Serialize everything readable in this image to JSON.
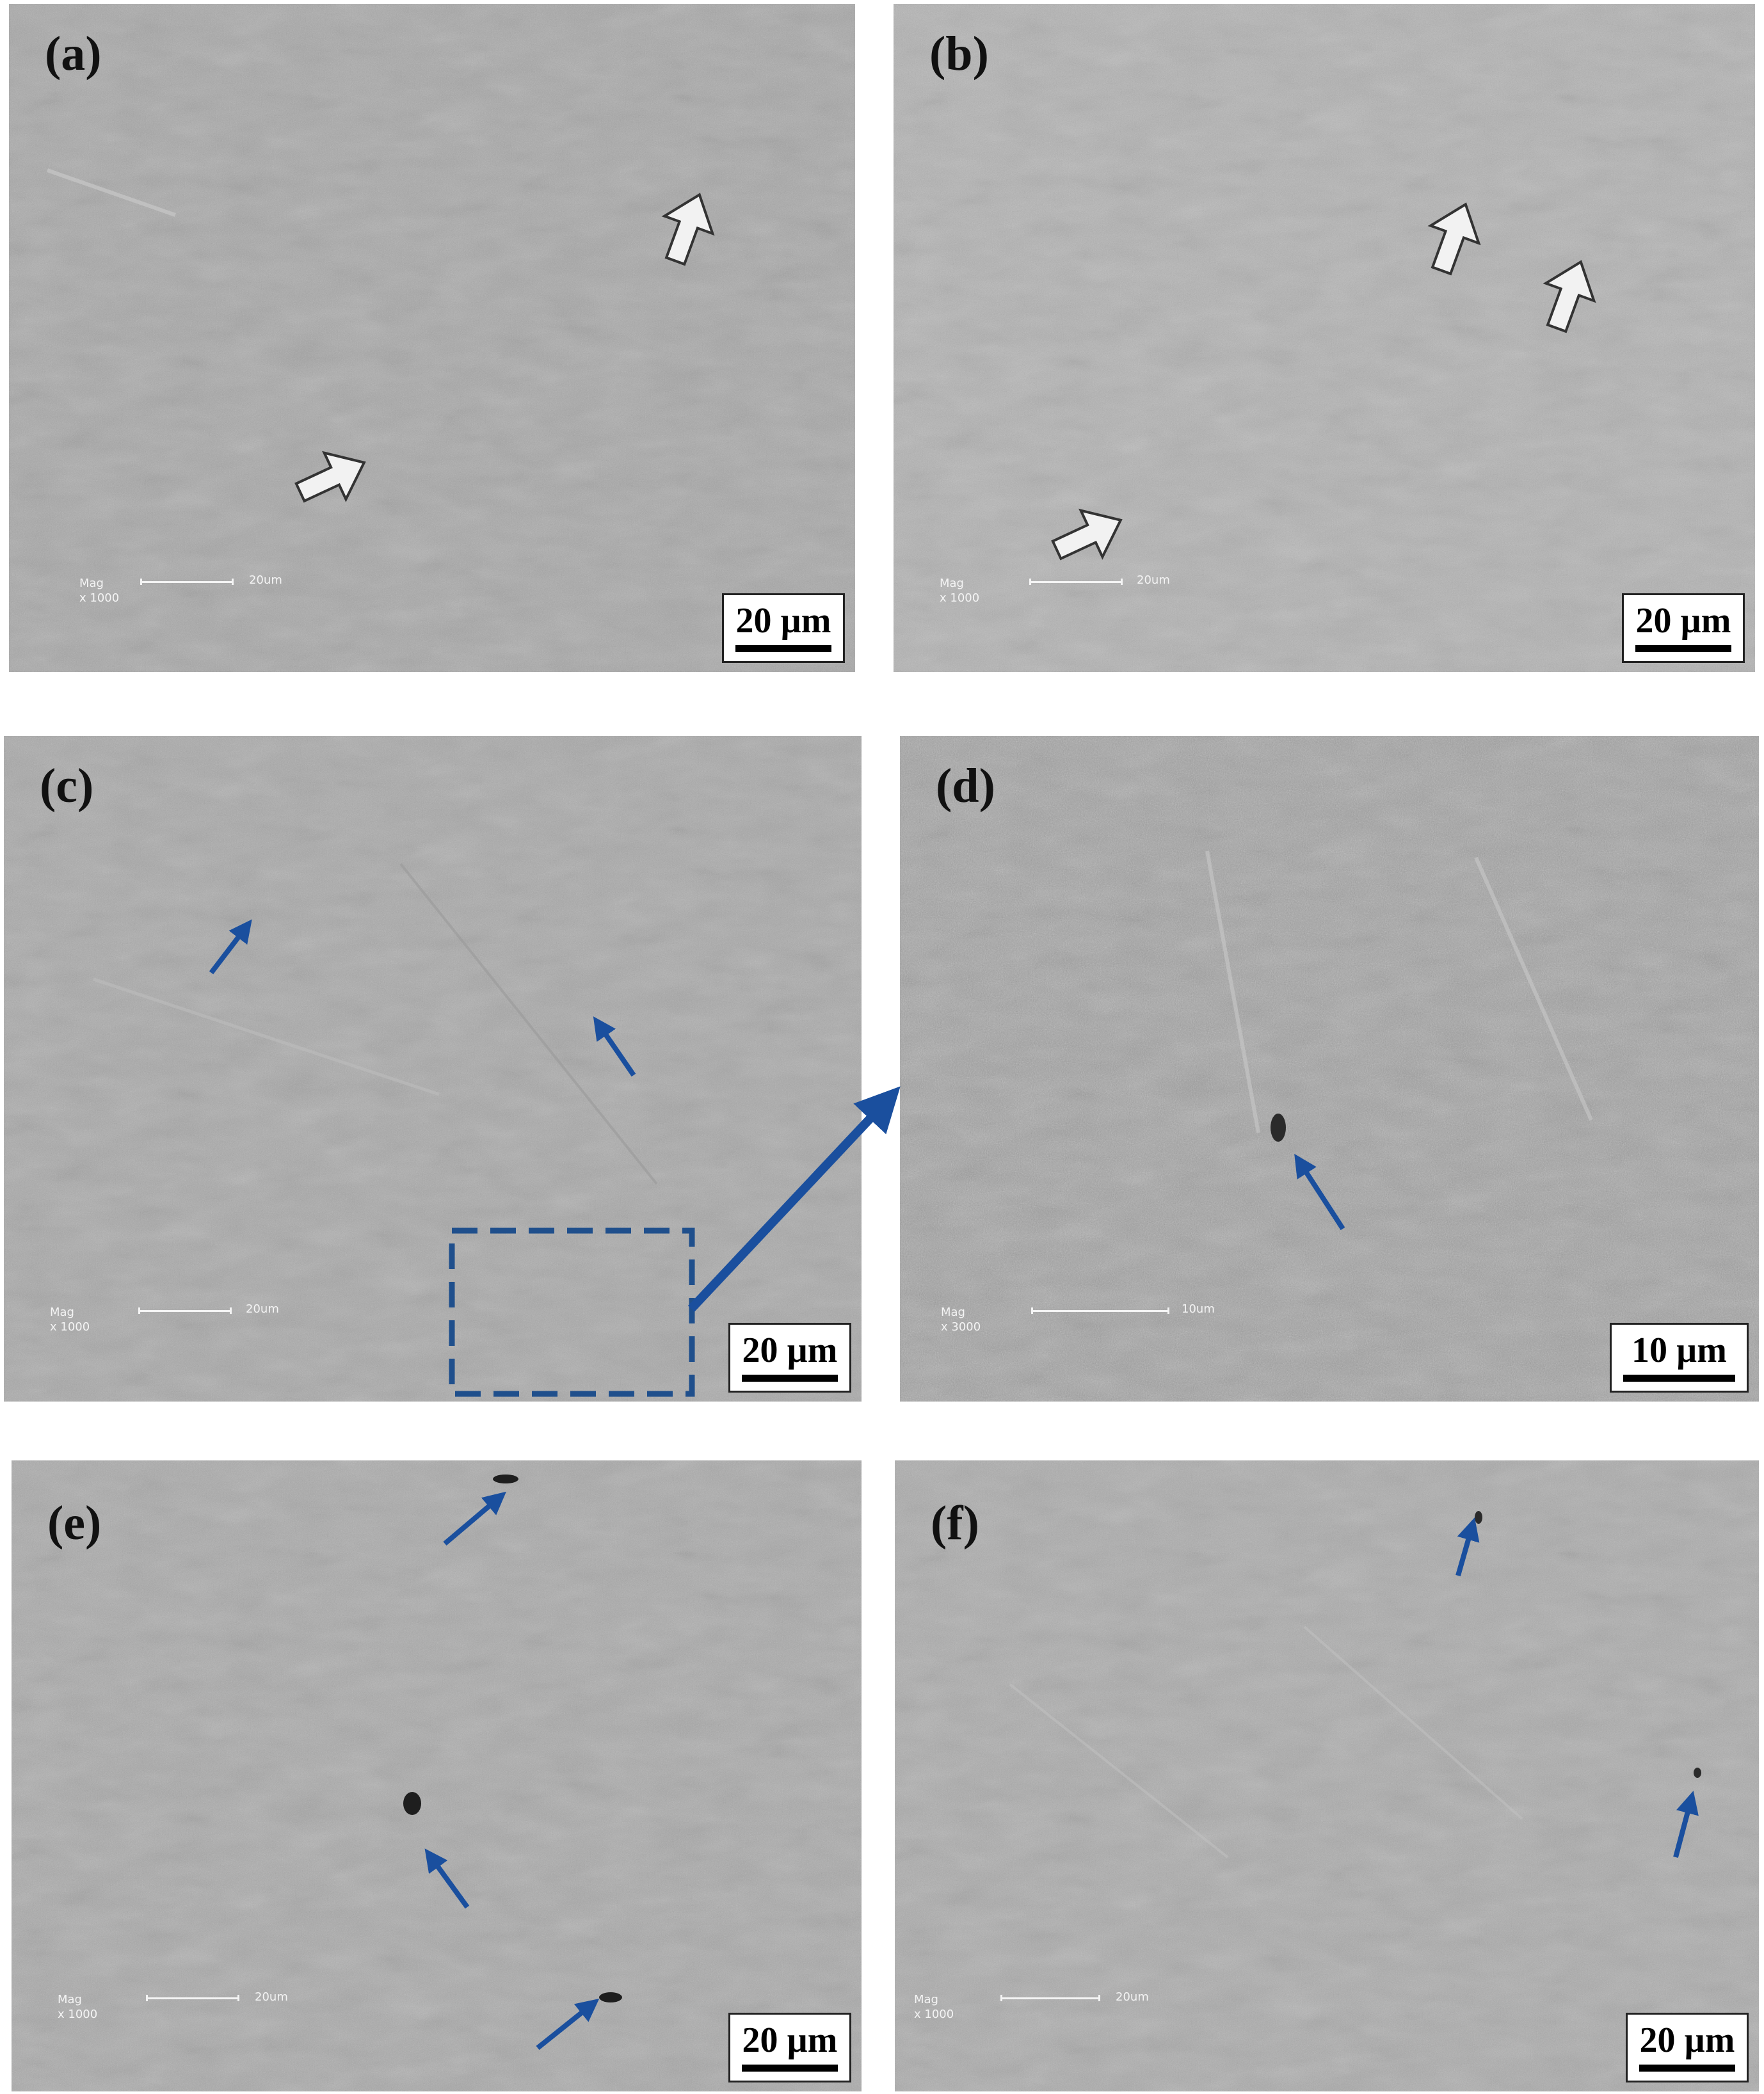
{
  "panels": {
    "a": {
      "label": "(a)",
      "mag_label": "Mag\nx 1000",
      "mag_scale_label": "20um",
      "scale_label": "20 µm"
    },
    "b": {
      "label": "(b)",
      "mag_label": "Mag\nx 1000",
      "mag_scale_label": "20um",
      "scale_label": "20 µm"
    },
    "c": {
      "label": "(c)",
      "mag_label": "Mag\nx 1000",
      "mag_scale_label": "20um",
      "scale_label": "20 µm"
    },
    "d": {
      "label": "(d)",
      "mag_label": "Mag\nx 3000",
      "mag_scale_label": "10um",
      "scale_label": "10 µm"
    },
    "e": {
      "label": "(e)",
      "mag_label": "Mag\nx 1000",
      "mag_scale_label": "20um",
      "scale_label": "20 µm"
    },
    "f": {
      "label": "(f)",
      "mag_label": "Mag\nx 1000",
      "mag_scale_label": "20um",
      "scale_label": "20 µm"
    }
  },
  "colors": {
    "background": "#ffffff",
    "sem_gray": "#a9a9a9",
    "blue_annotation": "#1a4f9e",
    "dashed_box": "#1f4f8c",
    "white_arrow_fill": "#f2f2f2",
    "label_text": "#111111"
  },
  "icons": {
    "white_arrow": "block-arrow-icon",
    "blue_arrow": "thin-arrow-icon",
    "zoom_arrow": "zoom-arrow-icon"
  }
}
